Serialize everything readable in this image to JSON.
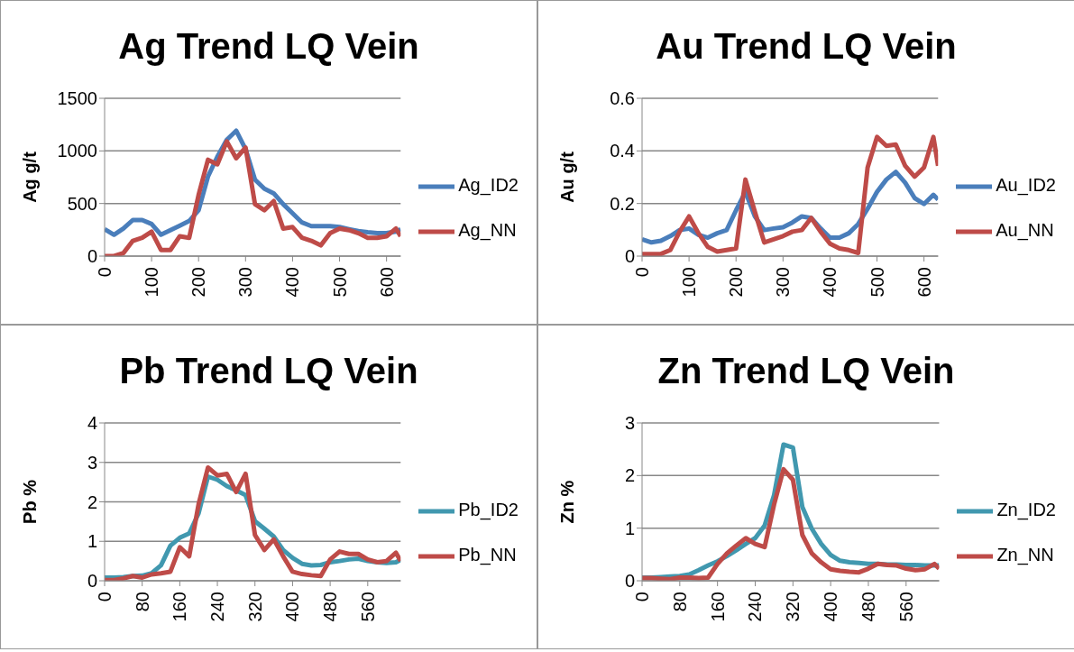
{
  "chart_data": [
    {
      "type": "line",
      "title": "Ag Trend LQ Vein",
      "ylabel": "Ag g/t",
      "x": [
        0,
        20,
        40,
        60,
        80,
        100,
        120,
        140,
        160,
        180,
        200,
        220,
        240,
        260,
        280,
        300,
        320,
        340,
        360,
        380,
        400,
        420,
        440,
        460,
        480,
        500,
        520,
        540,
        560,
        580,
        600,
        620,
        630
      ],
      "xlim": [
        0,
        630
      ],
      "xticks": [
        0,
        100,
        200,
        300,
        400,
        500,
        600
      ],
      "ylim": [
        0,
        1500
      ],
      "yticks": [
        0,
        500,
        1000,
        1500
      ],
      "grid": "y",
      "legend": "right",
      "series": [
        {
          "name": "Ag_ID2",
          "color": "#4a7ebb",
          "values": [
            256,
            203,
            262,
            343,
            343,
            305,
            203,
            247,
            290,
            334,
            436,
            756,
            945,
            1105,
            1192,
            1017,
            727,
            640,
            596,
            494,
            407,
            320,
            285,
            285,
            285,
            276,
            256,
            238,
            227,
            218,
            218,
            233,
            256
          ]
        },
        {
          "name": "Ag_NN",
          "color": "#be4b48",
          "values": [
            0,
            0,
            29,
            145,
            174,
            233,
            58,
            58,
            189,
            174,
            581,
            916,
            872,
            1090,
            930,
            1032,
            494,
            436,
            523,
            262,
            276,
            174,
            145,
            102,
            218,
            262,
            247,
            218,
            174,
            174,
            189,
            262,
            189
          ]
        }
      ]
    },
    {
      "type": "line",
      "title": "Au Trend LQ Vein",
      "ylabel": "Au g/t",
      "x": [
        0,
        20,
        40,
        60,
        80,
        100,
        120,
        140,
        160,
        180,
        200,
        220,
        240,
        260,
        280,
        300,
        320,
        340,
        360,
        380,
        400,
        420,
        440,
        460,
        480,
        500,
        520,
        540,
        560,
        580,
        600,
        620,
        630
      ],
      "xlim": [
        0,
        630
      ],
      "xticks": [
        0,
        100,
        200,
        300,
        400,
        500,
        600
      ],
      "ylim": [
        0,
        0.6
      ],
      "yticks": [
        0,
        0.2,
        0.4,
        0.6
      ],
      "grid": "y",
      "legend": "right",
      "series": [
        {
          "name": "Au_ID2",
          "color": "#4a7ebb",
          "values": [
            0.064,
            0.052,
            0.058,
            0.076,
            0.099,
            0.105,
            0.081,
            0.07,
            0.087,
            0.099,
            0.174,
            0.244,
            0.151,
            0.099,
            0.105,
            0.11,
            0.128,
            0.151,
            0.145,
            0.105,
            0.07,
            0.07,
            0.087,
            0.122,
            0.18,
            0.244,
            0.291,
            0.32,
            0.279,
            0.221,
            0.198,
            0.233,
            0.215
          ]
        },
        {
          "name": "Au_NN",
          "color": "#be4b48",
          "values": [
            0.008,
            0.008,
            0.008,
            0.023,
            0.093,
            0.151,
            0.087,
            0.035,
            0.017,
            0.023,
            0.029,
            0.291,
            0.169,
            0.052,
            0.064,
            0.076,
            0.093,
            0.099,
            0.145,
            0.093,
            0.047,
            0.029,
            0.023,
            0.012,
            0.337,
            0.453,
            0.419,
            0.424,
            0.343,
            0.302,
            0.337,
            0.453,
            0.343
          ]
        }
      ]
    },
    {
      "type": "line",
      "title": "Pb Trend LQ Vein",
      "ylabel": "Pb %",
      "x": [
        0,
        20,
        40,
        60,
        80,
        100,
        120,
        140,
        160,
        180,
        200,
        220,
        240,
        260,
        280,
        300,
        320,
        340,
        360,
        380,
        400,
        420,
        440,
        460,
        480,
        500,
        520,
        540,
        560,
        580,
        600,
        620,
        630
      ],
      "xlim": [
        0,
        630
      ],
      "xticks": [
        0,
        80,
        160,
        240,
        320,
        400,
        480,
        560
      ],
      "ylim": [
        0,
        4
      ],
      "yticks": [
        0,
        1,
        2,
        3,
        4
      ],
      "grid": "y",
      "legend": "right",
      "series": [
        {
          "name": "Pb_ID2",
          "color": "#4198af",
          "values": [
            0.08,
            0.08,
            0.09,
            0.12,
            0.13,
            0.19,
            0.39,
            0.89,
            1.09,
            1.2,
            1.71,
            2.64,
            2.56,
            2.4,
            2.29,
            2.17,
            1.51,
            1.32,
            1.12,
            0.78,
            0.58,
            0.43,
            0.39,
            0.4,
            0.47,
            0.5,
            0.54,
            0.56,
            0.5,
            0.47,
            0.45,
            0.47,
            0.53
          ]
        },
        {
          "name": "Pb_NN",
          "color": "#be4b48",
          "values": [
            0.02,
            0.02,
            0.06,
            0.12,
            0.08,
            0.16,
            0.19,
            0.23,
            0.85,
            0.62,
            1.94,
            2.87,
            2.67,
            2.71,
            2.25,
            2.71,
            1.16,
            0.78,
            1.05,
            0.62,
            0.23,
            0.17,
            0.14,
            0.12,
            0.54,
            0.74,
            0.68,
            0.68,
            0.54,
            0.47,
            0.5,
            0.71,
            0.5
          ]
        }
      ]
    },
    {
      "type": "line",
      "title": "Zn Trend LQ Vein",
      "ylabel": "Zn %",
      "x": [
        0,
        20,
        40,
        60,
        80,
        100,
        120,
        140,
        160,
        180,
        200,
        220,
        240,
        260,
        280,
        300,
        320,
        340,
        360,
        380,
        400,
        420,
        440,
        460,
        480,
        500,
        520,
        540,
        560,
        580,
        600,
        620,
        630
      ],
      "xlim": [
        0,
        630
      ],
      "xticks": [
        0,
        80,
        160,
        240,
        320,
        400,
        480,
        560
      ],
      "ylim": [
        0,
        3
      ],
      "yticks": [
        0,
        1,
        2,
        3
      ],
      "grid": "y",
      "legend": "right",
      "series": [
        {
          "name": "Zn_ID2",
          "color": "#4198af",
          "values": [
            0.06,
            0.06,
            0.07,
            0.08,
            0.09,
            0.12,
            0.2,
            0.29,
            0.37,
            0.47,
            0.58,
            0.7,
            0.81,
            1.05,
            1.63,
            2.59,
            2.53,
            1.4,
            0.99,
            0.7,
            0.49,
            0.38,
            0.35,
            0.34,
            0.32,
            0.32,
            0.31,
            0.31,
            0.3,
            0.3,
            0.29,
            0.29,
            0.29
          ]
        },
        {
          "name": "Zn_NN",
          "color": "#be4b48",
          "values": [
            0.05,
            0.05,
            0.04,
            0.03,
            0.06,
            0.06,
            0.05,
            0.06,
            0.32,
            0.52,
            0.67,
            0.81,
            0.7,
            0.64,
            1.45,
            2.12,
            1.92,
            0.87,
            0.52,
            0.35,
            0.22,
            0.19,
            0.17,
            0.16,
            0.23,
            0.32,
            0.3,
            0.29,
            0.23,
            0.2,
            0.22,
            0.32,
            0.23
          ]
        }
      ]
    }
  ]
}
